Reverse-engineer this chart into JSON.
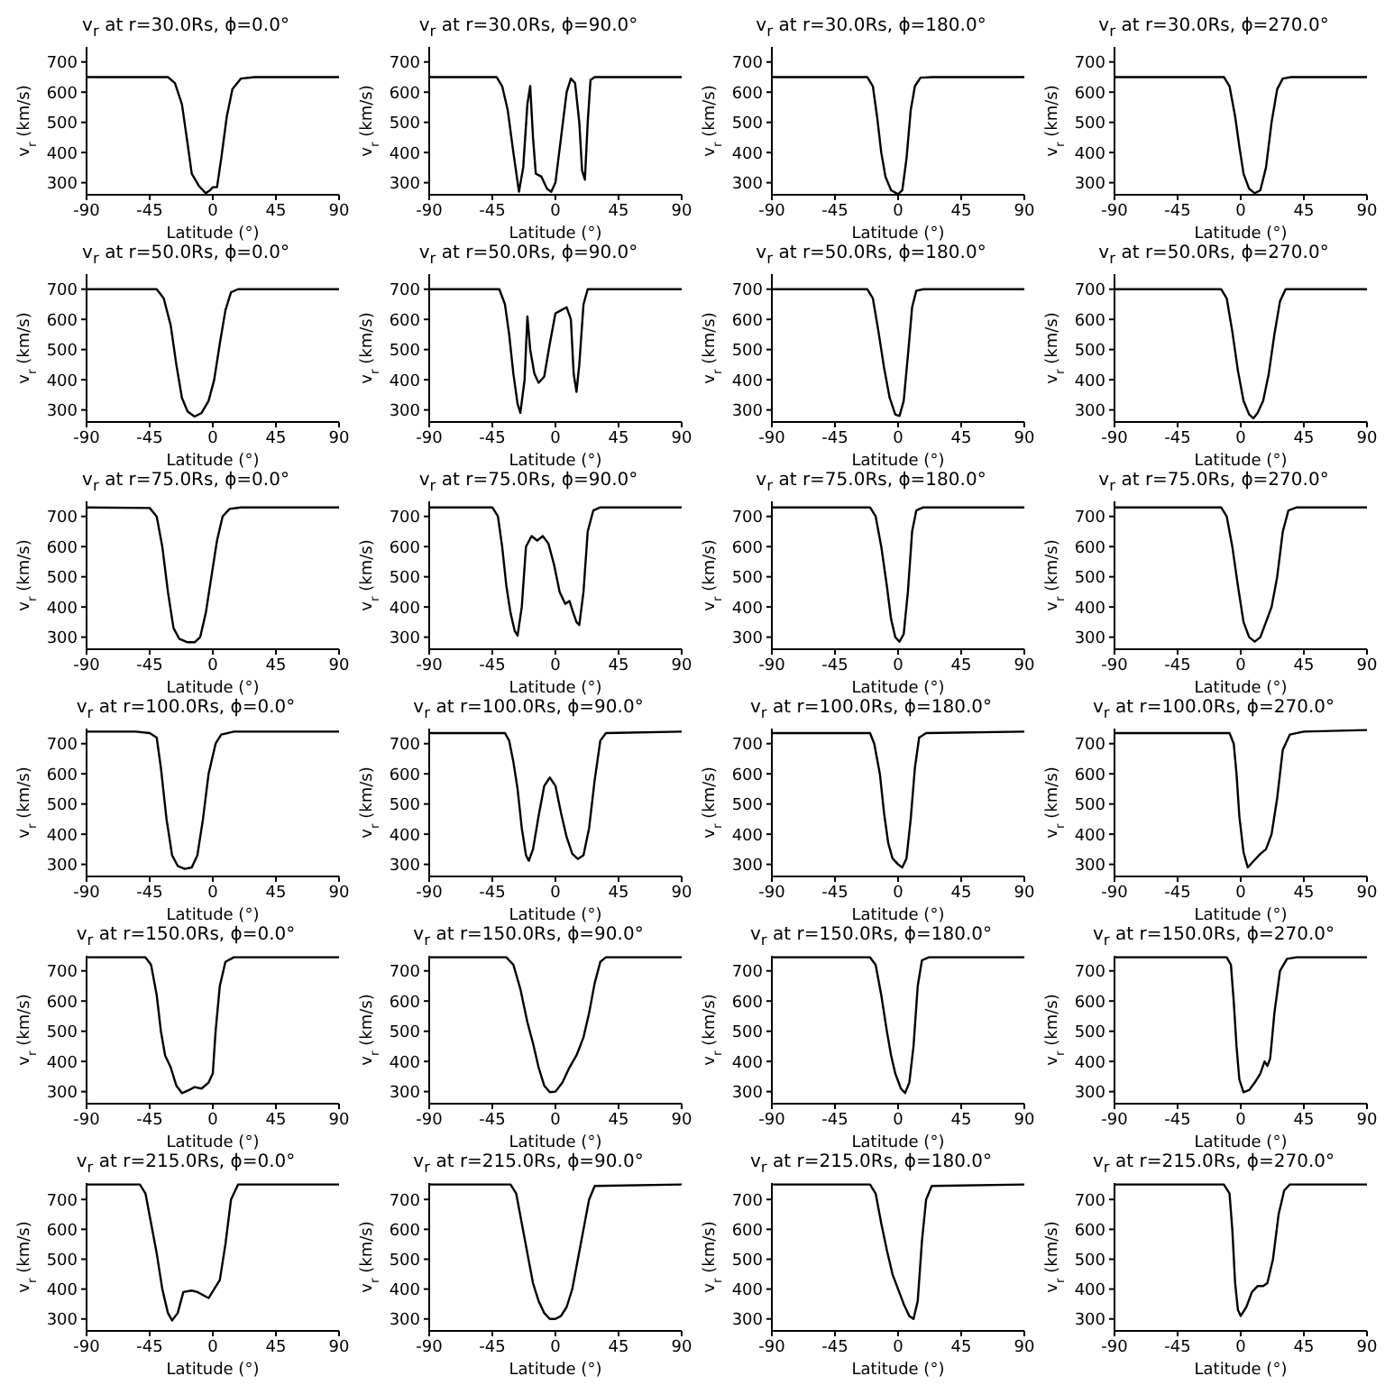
{
  "chart_data": [
    {
      "type": "line",
      "title": "v$_{r}$ at r=30.0Rs, ϕ=0.0°",
      "xlabel": "Latitude (°)",
      "ylabel": "v$_{r}$ (km/s)",
      "color": "#000000",
      "xlim": [
        -90,
        90
      ],
      "ylim": [
        260,
        750
      ],
      "xticks": [
        -90,
        -45,
        0,
        45,
        90
      ],
      "yticks": [
        300,
        400,
        500,
        600,
        700
      ],
      "x": [
        -90,
        -32,
        -27,
        -22,
        -18,
        -15,
        -10,
        -5,
        -2,
        0,
        3,
        6,
        10,
        14,
        20,
        30,
        90
      ],
      "values": [
        650,
        650,
        630,
        560,
        430,
        330,
        290,
        265,
        275,
        285,
        285,
        380,
        520,
        610,
        645,
        650,
        650
      ]
    },
    {
      "type": "line",
      "title": "v$_{r}$ at r=30.0Rs, ϕ=90.0°",
      "xlabel": "Latitude (°)",
      "ylabel": "v$_{r}$ (km/s)",
      "color": "#000000",
      "xlim": [
        -90,
        90
      ],
      "ylim": [
        260,
        750
      ],
      "xticks": [
        -90,
        -45,
        0,
        45,
        90
      ],
      "yticks": [
        300,
        400,
        500,
        600,
        700
      ],
      "x": [
        -90,
        -42,
        -38,
        -34,
        -30,
        -26,
        -23,
        -20,
        -18,
        -16,
        -14,
        -10,
        -6,
        -3,
        0,
        4,
        8,
        11,
        14,
        17,
        19,
        21,
        23,
        25,
        28,
        90
      ],
      "values": [
        650,
        650,
        620,
        540,
        400,
        270,
        350,
        560,
        620,
        450,
        330,
        320,
        280,
        270,
        300,
        450,
        600,
        645,
        630,
        500,
        340,
        310,
        500,
        640,
        650,
        650
      ]
    },
    {
      "type": "line",
      "title": "v$_{r}$ at r=30.0Rs, ϕ=180.0°",
      "xlabel": "Latitude (°)",
      "ylabel": "v$_{r}$ (km/s)",
      "color": "#000000",
      "xlim": [
        -90,
        90
      ],
      "ylim": [
        260,
        750
      ],
      "xticks": [
        -90,
        -45,
        0,
        45,
        90
      ],
      "yticks": [
        300,
        400,
        500,
        600,
        700
      ],
      "x": [
        -90,
        -22,
        -18,
        -15,
        -12,
        -9,
        -5,
        0,
        3,
        6,
        9,
        12,
        16,
        25,
        90
      ],
      "values": [
        650,
        650,
        620,
        520,
        400,
        320,
        275,
        262,
        275,
        380,
        540,
        620,
        648,
        650,
        650
      ]
    },
    {
      "type": "line",
      "title": "v$_{r}$ at r=30.0Rs, ϕ=270.0°",
      "xlabel": "Latitude (°)",
      "ylabel": "v$_{r}$ (km/s)",
      "color": "#000000",
      "xlim": [
        -90,
        90
      ],
      "ylim": [
        260,
        750
      ],
      "xticks": [
        -90,
        -45,
        0,
        45,
        90
      ],
      "yticks": [
        300,
        400,
        500,
        600,
        700
      ],
      "x": [
        -90,
        -12,
        -8,
        -4,
        -1,
        2,
        6,
        10,
        14,
        18,
        22,
        26,
        30,
        36,
        90
      ],
      "values": [
        650,
        650,
        620,
        520,
        420,
        330,
        280,
        265,
        275,
        350,
        500,
        610,
        645,
        650,
        650
      ]
    },
    {
      "type": "line",
      "title": "v$_{r}$ at r=50.0Rs, ϕ=0.0°",
      "xlabel": "Latitude (°)",
      "ylabel": "v$_{r}$ (km/s)",
      "color": "#000000",
      "xlim": [
        -90,
        90
      ],
      "ylim": [
        260,
        750
      ],
      "xticks": [
        -90,
        -45,
        0,
        45,
        90
      ],
      "yticks": [
        300,
        400,
        500,
        600,
        700
      ],
      "x": [
        -90,
        -40,
        -35,
        -30,
        -26,
        -22,
        -18,
        -13,
        -8,
        -3,
        1,
        5,
        9,
        13,
        18,
        90
      ],
      "values": [
        700,
        700,
        670,
        580,
        450,
        340,
        295,
        278,
        290,
        330,
        400,
        520,
        630,
        690,
        700,
        700
      ]
    },
    {
      "type": "line",
      "title": "v$_{r}$ at r=50.0Rs, ϕ=90.0°",
      "xlabel": "Latitude (°)",
      "ylabel": "v$_{r}$ (km/s)",
      "color": "#000000",
      "xlim": [
        -90,
        90
      ],
      "ylim": [
        260,
        750
      ],
      "xticks": [
        -90,
        -45,
        0,
        45,
        90
      ],
      "yticks": [
        300,
        400,
        500,
        600,
        700
      ],
      "x": [
        -90,
        -40,
        -36,
        -33,
        -30,
        -27,
        -25,
        -22,
        -20,
        -18,
        -15,
        -12,
        -8,
        -4,
        0,
        4,
        8,
        11,
        13,
        15,
        17,
        20,
        23,
        90
      ],
      "values": [
        700,
        700,
        650,
        550,
        420,
        320,
        290,
        400,
        610,
        500,
        420,
        390,
        410,
        520,
        620,
        630,
        640,
        600,
        420,
        360,
        450,
        650,
        700,
        700
      ]
    },
    {
      "type": "line",
      "title": "v$_{r}$ at r=50.0Rs, ϕ=180.0°",
      "xlabel": "Latitude (°)",
      "ylabel": "v$_{r}$ (km/s)",
      "color": "#000000",
      "xlim": [
        -90,
        90
      ],
      "ylim": [
        260,
        750
      ],
      "xticks": [
        -90,
        -45,
        0,
        45,
        90
      ],
      "yticks": [
        300,
        400,
        500,
        600,
        700
      ],
      "x": [
        -90,
        -22,
        -18,
        -14,
        -10,
        -6,
        -2,
        1,
        4,
        7,
        10,
        13,
        18,
        90
      ],
      "values": [
        700,
        700,
        670,
        560,
        440,
        340,
        285,
        280,
        330,
        480,
        640,
        695,
        700,
        700
      ]
    },
    {
      "type": "line",
      "title": "v$_{r}$ at r=50.0Rs, ϕ=270.0°",
      "xlabel": "Latitude (°)",
      "ylabel": "v$_{r}$ (km/s)",
      "color": "#000000",
      "xlim": [
        -90,
        90
      ],
      "ylim": [
        260,
        750
      ],
      "xticks": [
        -90,
        -45,
        0,
        45,
        90
      ],
      "yticks": [
        300,
        400,
        500,
        600,
        700
      ],
      "x": [
        -90,
        -14,
        -10,
        -6,
        -2,
        2,
        6,
        9,
        12,
        16,
        20,
        24,
        28,
        32,
        90
      ],
      "values": [
        700,
        700,
        670,
        560,
        430,
        330,
        285,
        272,
        290,
        330,
        420,
        550,
        660,
        700,
        700
      ]
    },
    {
      "type": "line",
      "title": "v$_{r}$ at r=75.0Rs, ϕ=0.0°",
      "xlabel": "Latitude (°)",
      "ylabel": "v$_{r}$ (km/s)",
      "color": "#000000",
      "xlim": [
        -90,
        90
      ],
      "ylim": [
        260,
        750
      ],
      "xticks": [
        -90,
        -45,
        0,
        45,
        90
      ],
      "yticks": [
        300,
        400,
        500,
        600,
        700
      ],
      "x": [
        -90,
        -45,
        -40,
        -36,
        -32,
        -28,
        -24,
        -18,
        -13,
        -9,
        -5,
        -1,
        3,
        7,
        12,
        20,
        90
      ],
      "values": [
        730,
        728,
        700,
        600,
        450,
        330,
        295,
        283,
        283,
        300,
        380,
        500,
        620,
        700,
        725,
        730,
        730
      ]
    },
    {
      "type": "line",
      "title": "v$_{r}$ at r=75.0Rs, ϕ=90.0°",
      "xlabel": "Latitude (°)",
      "ylabel": "v$_{r}$ (km/s)",
      "color": "#000000",
      "xlim": [
        -90,
        90
      ],
      "ylim": [
        260,
        750
      ],
      "xticks": [
        -90,
        -45,
        0,
        45,
        90
      ],
      "yticks": [
        300,
        400,
        500,
        600,
        700
      ],
      "x": [
        -90,
        -45,
        -41,
        -38,
        -35,
        -32,
        -29,
        -27,
        -24,
        -21,
        -17,
        -13,
        -9,
        -5,
        -1,
        3,
        7,
        10,
        12,
        15,
        17,
        20,
        23,
        27,
        32,
        90
      ],
      "values": [
        730,
        730,
        700,
        600,
        470,
        380,
        320,
        305,
        400,
        600,
        635,
        620,
        635,
        610,
        540,
        450,
        410,
        420,
        390,
        350,
        340,
        450,
        650,
        720,
        730,
        730
      ]
    },
    {
      "type": "line",
      "title": "v$_{r}$ at r=75.0Rs, ϕ=180.0°",
      "xlabel": "Latitude (°)",
      "ylabel": "v$_{r}$ (km/s)",
      "color": "#000000",
      "xlim": [
        -90,
        90
      ],
      "ylim": [
        260,
        750
      ],
      "xticks": [
        -90,
        -45,
        0,
        45,
        90
      ],
      "yticks": [
        300,
        400,
        500,
        600,
        700
      ],
      "x": [
        -90,
        -20,
        -16,
        -12,
        -8,
        -5,
        -2,
        1,
        4,
        7,
        10,
        13,
        18,
        90
      ],
      "values": [
        730,
        730,
        700,
        600,
        470,
        360,
        300,
        285,
        310,
        450,
        650,
        720,
        730,
        730
      ]
    },
    {
      "type": "line",
      "title": "v$_{r}$ at r=75.0Rs, ϕ=270.0°",
      "xlabel": "Latitude (°)",
      "ylabel": "v$_{r}$ (km/s)",
      "color": "#000000",
      "xlim": [
        -90,
        90
      ],
      "ylim": [
        260,
        750
      ],
      "xticks": [
        -90,
        -45,
        0,
        45,
        90
      ],
      "yticks": [
        300,
        400,
        500,
        600,
        700
      ],
      "x": [
        -90,
        -14,
        -10,
        -6,
        -2,
        2,
        6,
        10,
        14,
        18,
        22,
        26,
        30,
        34,
        40,
        90
      ],
      "values": [
        730,
        730,
        700,
        600,
        470,
        350,
        300,
        285,
        300,
        350,
        400,
        500,
        650,
        720,
        730,
        730
      ]
    },
    {
      "type": "line",
      "title": "v$_{r}$ at r=100.0Rs, ϕ=0.0°",
      "xlabel": "Latitude (°)",
      "ylabel": "v$_{r}$ (km/s)",
      "color": "#000000",
      "xlim": [
        -90,
        90
      ],
      "ylim": [
        260,
        750
      ],
      "xticks": [
        -90,
        -45,
        0,
        45,
        90
      ],
      "yticks": [
        300,
        400,
        500,
        600,
        700
      ],
      "x": [
        -90,
        -55,
        -45,
        -40,
        -37,
        -33,
        -29,
        -25,
        -20,
        -15,
        -11,
        -7,
        -3,
        2,
        6,
        15,
        90
      ],
      "values": [
        740,
        740,
        735,
        720,
        620,
        450,
        330,
        295,
        285,
        290,
        330,
        450,
        600,
        700,
        730,
        740,
        740
      ]
    },
    {
      "type": "line",
      "title": "v$_{r}$ at r=100.0Rs, ϕ=90.0°",
      "xlabel": "Latitude (°)",
      "ylabel": "v$_{r}$ (km/s)",
      "color": "#000000",
      "xlim": [
        -90,
        90
      ],
      "ylim": [
        260,
        750
      ],
      "xticks": [
        -90,
        -45,
        0,
        45,
        90
      ],
      "yticks": [
        300,
        400,
        500,
        600,
        700
      ],
      "x": [
        -90,
        -36,
        -33,
        -30,
        -27,
        -24,
        -21,
        -19,
        -16,
        -12,
        -8,
        -4,
        0,
        4,
        8,
        12,
        16,
        20,
        24,
        28,
        32,
        36,
        90
      ],
      "values": [
        735,
        735,
        710,
        640,
        550,
        420,
        330,
        312,
        350,
        460,
        560,
        588,
        560,
        470,
        390,
        335,
        318,
        330,
        420,
        580,
        710,
        735,
        740
      ]
    },
    {
      "type": "line",
      "title": "v$_{r}$ at r=100.0Rs, ϕ=180.0°",
      "xlabel": "Latitude (°)",
      "ylabel": "v$_{r}$ (km/s)",
      "color": "#000000",
      "xlim": [
        -90,
        90
      ],
      "ylim": [
        260,
        750
      ],
      "xticks": [
        -90,
        -45,
        0,
        45,
        90
      ],
      "yticks": [
        300,
        400,
        500,
        600,
        700
      ],
      "x": [
        -90,
        -20,
        -17,
        -13,
        -10,
        -7,
        -4,
        0,
        3,
        6,
        9,
        12,
        15,
        20,
        90
      ],
      "values": [
        735,
        735,
        700,
        600,
        470,
        370,
        320,
        300,
        290,
        320,
        450,
        620,
        720,
        735,
        740
      ]
    },
    {
      "type": "line",
      "title": "v$_{r}$ at r=100.0Rs, ϕ=270.0°",
      "xlabel": "Latitude (°)",
      "ylabel": "v$_{r}$ (km/s)",
      "color": "#000000",
      "xlim": [
        -90,
        90
      ],
      "ylim": [
        260,
        750
      ],
      "xticks": [
        -90,
        -45,
        0,
        45,
        90
      ],
      "yticks": [
        300,
        400,
        500,
        600,
        700
      ],
      "x": [
        -90,
        -8,
        -5,
        -3,
        -1,
        2,
        5,
        9,
        14,
        18,
        22,
        26,
        30,
        35,
        45,
        90
      ],
      "values": [
        735,
        735,
        700,
        600,
        460,
        340,
        290,
        310,
        335,
        350,
        400,
        520,
        680,
        730,
        740,
        745
      ]
    },
    {
      "type": "line",
      "title": "v$_{r}$ at r=150.0Rs, ϕ=0.0°",
      "xlabel": "Latitude (°)",
      "ylabel": "v$_{r}$ (km/s)",
      "color": "#000000",
      "xlim": [
        -90,
        90
      ],
      "ylim": [
        260,
        750
      ],
      "xticks": [
        -90,
        -45,
        0,
        45,
        90
      ],
      "yticks": [
        300,
        400,
        500,
        600,
        700
      ],
      "x": [
        -90,
        -48,
        -44,
        -40,
        -37,
        -34,
        -30,
        -26,
        -22,
        -17,
        -13,
        -8,
        -3,
        0,
        2,
        5,
        9,
        15,
        90
      ],
      "values": [
        745,
        745,
        720,
        620,
        500,
        420,
        380,
        320,
        295,
        305,
        315,
        310,
        330,
        360,
        500,
        650,
        730,
        745,
        745
      ]
    },
    {
      "type": "line",
      "title": "v$_{r}$ at r=150.0Rs, ϕ=90.0°",
      "xlabel": "Latitude (°)",
      "ylabel": "v$_{r}$ (km/s)",
      "color": "#000000",
      "xlim": [
        -90,
        90
      ],
      "ylim": [
        260,
        750
      ],
      "xticks": [
        -90,
        -45,
        0,
        45,
        90
      ],
      "yticks": [
        300,
        400,
        500,
        600,
        700
      ],
      "x": [
        -90,
        -35,
        -30,
        -25,
        -20,
        -16,
        -12,
        -8,
        -4,
        0,
        5,
        10,
        15,
        20,
        24,
        28,
        32,
        36,
        90
      ],
      "values": [
        745,
        745,
        720,
        640,
        530,
        460,
        380,
        320,
        298,
        300,
        330,
        380,
        420,
        480,
        560,
        660,
        730,
        745,
        745
      ]
    },
    {
      "type": "line",
      "title": "v$_{r}$ at r=150.0Rs, ϕ=180.0°",
      "xlabel": "Latitude (°)",
      "ylabel": "v$_{r}$ (km/s)",
      "color": "#000000",
      "xlim": [
        -90,
        90
      ],
      "ylim": [
        260,
        750
      ],
      "xticks": [
        -90,
        -45,
        0,
        45,
        90
      ],
      "yticks": [
        300,
        400,
        500,
        600,
        700
      ],
      "x": [
        -90,
        -20,
        -16,
        -12,
        -8,
        -5,
        -2,
        2,
        5,
        8,
        11,
        14,
        17,
        22,
        90
      ],
      "values": [
        745,
        745,
        720,
        620,
        500,
        420,
        360,
        310,
        295,
        330,
        450,
        650,
        735,
        745,
        745
      ]
    },
    {
      "type": "line",
      "title": "v$_{r}$ at r=150.0Rs, ϕ=270.0°",
      "xlabel": "Latitude (°)",
      "ylabel": "v$_{r}$ (km/s)",
      "color": "#000000",
      "xlim": [
        -90,
        90
      ],
      "ylim": [
        260,
        750
      ],
      "xticks": [
        -90,
        -45,
        0,
        45,
        90
      ],
      "yticks": [
        300,
        400,
        500,
        600,
        700
      ],
      "x": [
        -90,
        -10,
        -7,
        -5,
        -3,
        -1,
        2,
        6,
        10,
        14,
        17,
        19,
        21,
        24,
        28,
        33,
        40,
        90
      ],
      "values": [
        745,
        745,
        720,
        600,
        450,
        340,
        298,
        305,
        330,
        360,
        400,
        385,
        410,
        560,
        700,
        740,
        745,
        745
      ]
    },
    {
      "type": "line",
      "title": "v$_{r}$ at r=215.0Rs, ϕ=0.0°",
      "xlabel": "Latitude (°)",
      "ylabel": "v$_{r}$ (km/s)",
      "color": "#000000",
      "xlim": [
        -90,
        90
      ],
      "ylim": [
        260,
        755
      ],
      "xticks": [
        -90,
        -45,
        0,
        45,
        90
      ],
      "yticks": [
        300,
        400,
        500,
        600,
        700
      ],
      "x": [
        -90,
        -52,
        -48,
        -44,
        -40,
        -36,
        -32,
        -29,
        -25,
        -21,
        -15,
        -11,
        -7,
        -3,
        1,
        5,
        9,
        13,
        18,
        90
      ],
      "values": [
        750,
        750,
        720,
        620,
        520,
        400,
        320,
        295,
        320,
        390,
        395,
        390,
        380,
        370,
        400,
        430,
        550,
        700,
        750,
        750
      ]
    },
    {
      "type": "line",
      "title": "v$_{r}$ at r=215.0Rs, ϕ=90.0°",
      "xlabel": "Latitude (°)",
      "ylabel": "v$_{r}$ (km/s)",
      "color": "#000000",
      "xlim": [
        -90,
        90
      ],
      "ylim": [
        260,
        755
      ],
      "xticks": [
        -90,
        -45,
        0,
        45,
        90
      ],
      "yticks": [
        300,
        400,
        500,
        600,
        700
      ],
      "x": [
        -90,
        -32,
        -28,
        -24,
        -20,
        -16,
        -12,
        -8,
        -4,
        0,
        4,
        8,
        12,
        16,
        20,
        24,
        28,
        90
      ],
      "values": [
        750,
        750,
        720,
        620,
        520,
        420,
        360,
        320,
        300,
        300,
        310,
        340,
        400,
        500,
        600,
        700,
        745,
        750
      ]
    },
    {
      "type": "line",
      "title": "v$_{r}$ at r=215.0Rs, ϕ=180.0°",
      "xlabel": "Latitude (°)",
      "ylabel": "v$_{r}$ (km/s)",
      "color": "#000000",
      "xlim": [
        -90,
        90
      ],
      "ylim": [
        260,
        755
      ],
      "xticks": [
        -90,
        -45,
        0,
        45,
        90
      ],
      "yticks": [
        300,
        400,
        500,
        600,
        700
      ],
      "x": [
        -90,
        -20,
        -16,
        -12,
        -8,
        -4,
        0,
        4,
        8,
        11,
        14,
        17,
        20,
        24,
        90
      ],
      "values": [
        750,
        750,
        720,
        620,
        530,
        450,
        400,
        350,
        310,
        300,
        360,
        560,
        700,
        745,
        750
      ]
    },
    {
      "type": "line",
      "title": "v$_{r}$ at r=215.0Rs, ϕ=270.0°",
      "xlabel": "Latitude (°)",
      "ylabel": "v$_{r}$ (km/s)",
      "color": "#000000",
      "xlim": [
        -90,
        90
      ],
      "ylim": [
        260,
        755
      ],
      "xticks": [
        -90,
        -45,
        0,
        45,
        90
      ],
      "yticks": [
        300,
        400,
        500,
        600,
        700
      ],
      "x": [
        -90,
        -12,
        -8,
        -6,
        -4,
        -2,
        0,
        4,
        8,
        12,
        16,
        19,
        23,
        27,
        31,
        35,
        90
      ],
      "values": [
        750,
        750,
        720,
        600,
        420,
        330,
        310,
        340,
        390,
        410,
        410,
        420,
        500,
        650,
        730,
        750,
        750
      ]
    }
  ]
}
